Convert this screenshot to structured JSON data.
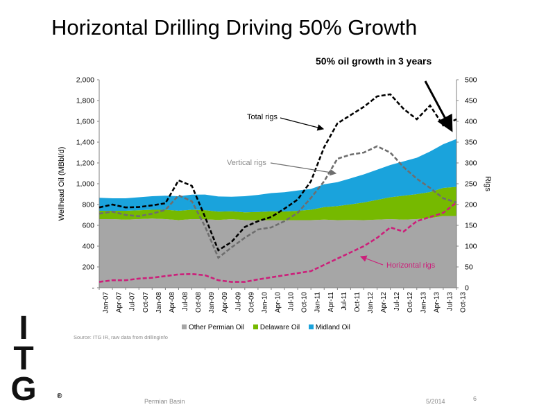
{
  "slide": {
    "title": "Horizontal Drilling Driving 50% Growth",
    "subtitle": "50% oil growth in 3 years",
    "source": "Source: ITG IR, raw data from drillinginfo",
    "footer_center": "Permian Basin",
    "footer_date": "5/2014",
    "page_number": "6",
    "logo_text": "ITG",
    "logo_letters": [
      "I",
      "T",
      "G"
    ],
    "logo_reg": "®"
  },
  "colors": {
    "other_permian": "#a6a6a6",
    "delaware": "#76b900",
    "midland": "#1aa3dc",
    "total_rigs": "#000000",
    "vertical_rigs": "#6e6e6e",
    "horizontal_rigs": "#cc1f7a"
  },
  "chart_data": {
    "type": "area",
    "title": "",
    "ylabel": "Wellhead Oil (MBbl/d)",
    "y2label": "Rigs",
    "ylim": [
      0,
      2000
    ],
    "y2lim": [
      0,
      500
    ],
    "yticks": [
      "-",
      "200",
      "400",
      "600",
      "800",
      "1,000",
      "1,200",
      "1,400",
      "1,600",
      "1,800",
      "2,000"
    ],
    "y2ticks": [
      "0",
      "50",
      "100",
      "150",
      "200",
      "250",
      "300",
      "350",
      "400",
      "450",
      "500"
    ],
    "x_tick_labels": [
      "Jan-07",
      "Apr-07",
      "Jul-07",
      "Oct-07",
      "Jan-08",
      "Apr-08",
      "Jul-08",
      "Oct-08",
      "Jan-09",
      "Apr-09",
      "Jul-09",
      "Oct-09",
      "Jan-10",
      "Apr-10",
      "Jul-10",
      "Oct-10",
      "Jan-11",
      "Apr-11",
      "Jul-11",
      "Oct-11",
      "Jan-12",
      "Apr-12",
      "Jul-12",
      "Oct-12",
      "Jan-13",
      "Apr-13",
      "Jul-13",
      "Oct-13"
    ],
    "grid": false,
    "legend_position": "bottom",
    "stacked_areas": [
      {
        "name": "Other Permian Oil",
        "axis": "left",
        "values": [
          660,
          660,
          655,
          660,
          665,
          660,
          650,
          660,
          658,
          652,
          660,
          650,
          648,
          650,
          648,
          650,
          650,
          655,
          650,
          652,
          650,
          655,
          660,
          655,
          660,
          670,
          690,
          690
        ]
      },
      {
        "name": "Delaware Oil",
        "axis": "left",
        "values": [
          80,
          80,
          85,
          85,
          85,
          90,
          90,
          90,
          88,
          80,
          75,
          75,
          80,
          85,
          85,
          90,
          100,
          120,
          135,
          150,
          170,
          190,
          210,
          230,
          240,
          250,
          270,
          280
        ]
      },
      {
        "name": "Midland Oil",
        "axis": "left",
        "values": [
          125,
          120,
          120,
          125,
          130,
          135,
          140,
          145,
          150,
          145,
          140,
          155,
          165,
          175,
          185,
          195,
          200,
          220,
          230,
          250,
          270,
          290,
          310,
          330,
          350,
          390,
          420,
          460
        ]
      }
    ],
    "lines": [
      {
        "name": "Total rigs",
        "axis": "right",
        "style": "dashed",
        "values": [
          193,
          200,
          193,
          194,
          198,
          203,
          258,
          245,
          170,
          90,
          110,
          146,
          160,
          170,
          190,
          212,
          256,
          338,
          395,
          415,
          435,
          460,
          465,
          430,
          405,
          438,
          390,
          405
        ]
      },
      {
        "name": "Vertical rigs",
        "axis": "right",
        "style": "dashed",
        "values": [
          178,
          183,
          175,
          172,
          178,
          187,
          222,
          208,
          147,
          72,
          97,
          120,
          140,
          145,
          160,
          180,
          216,
          256,
          310,
          320,
          325,
          340,
          325,
          290,
          262,
          240,
          215,
          205
        ]
      },
      {
        "name": "Horizontal rigs",
        "axis": "right",
        "style": "dashed",
        "values": [
          14,
          18,
          18,
          22,
          24,
          28,
          32,
          33,
          30,
          18,
          14,
          14,
          20,
          25,
          30,
          35,
          40,
          55,
          70,
          85,
          100,
          120,
          145,
          135,
          160,
          170,
          180,
          205
        ]
      }
    ],
    "annotations": [
      {
        "text": "Total rigs",
        "target_series": "Total rigs"
      },
      {
        "text": "Vertical rigs",
        "target_series": "Vertical rigs"
      },
      {
        "text": "Horizontal rigs",
        "target_series": "Horizontal rigs"
      }
    ]
  }
}
